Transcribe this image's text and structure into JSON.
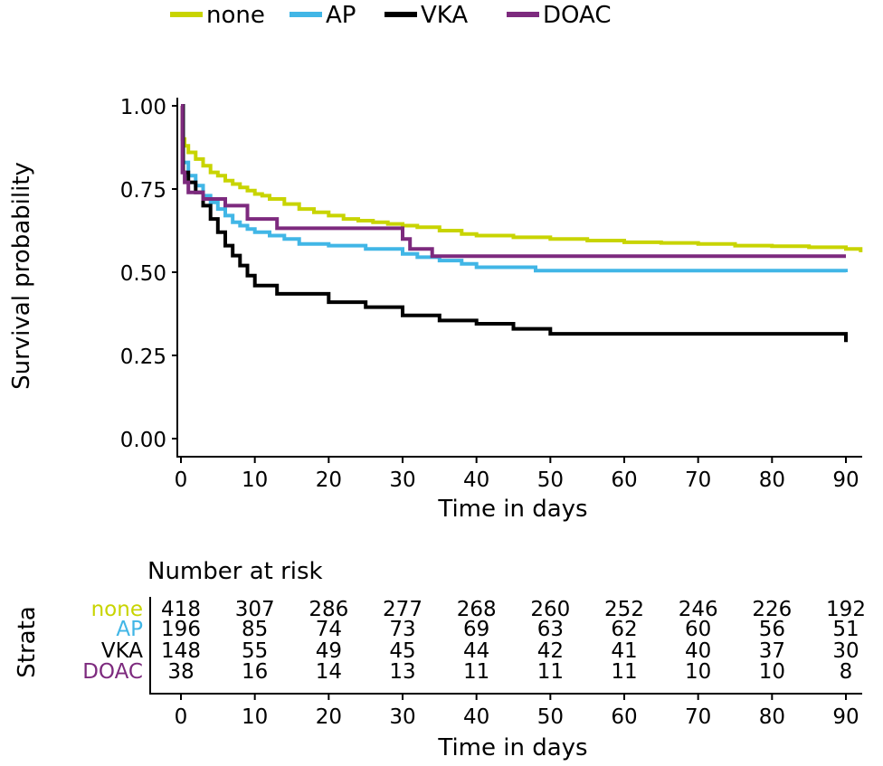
{
  "chart_data": [
    {
      "type": "line",
      "subtype": "kaplan-meier step curve",
      "title": "",
      "xlabel": "Time in days",
      "ylabel": "Survival probability",
      "xlim": [
        0,
        92
      ],
      "ylim": [
        0,
        1
      ],
      "x_ticks": [
        "0",
        "10",
        "20",
        "30",
        "40",
        "50",
        "60",
        "70",
        "80",
        "90"
      ],
      "y_ticks": [
        "0.00",
        "0.25",
        "0.50",
        "0.75",
        "1.00"
      ],
      "grid": false,
      "legend_position": "top",
      "series": [
        {
          "name": "none",
          "color": "#c8d400",
          "x": [
            0,
            0.2,
            0.5,
            1,
            2,
            3,
            4,
            5,
            6,
            7,
            8,
            9,
            10,
            11,
            12,
            14,
            16,
            18,
            20,
            22,
            24,
            26,
            28,
            30,
            32,
            35,
            38,
            40,
            45,
            50,
            55,
            60,
            65,
            70,
            75,
            80,
            85,
            90,
            92
          ],
          "y": [
            1.0,
            0.9,
            0.88,
            0.86,
            0.84,
            0.82,
            0.8,
            0.79,
            0.775,
            0.765,
            0.755,
            0.745,
            0.735,
            0.73,
            0.72,
            0.705,
            0.69,
            0.68,
            0.67,
            0.66,
            0.655,
            0.65,
            0.645,
            0.64,
            0.635,
            0.625,
            0.615,
            0.61,
            0.605,
            0.6,
            0.595,
            0.59,
            0.588,
            0.585,
            0.58,
            0.578,
            0.575,
            0.57,
            0.56
          ]
        },
        {
          "name": "AP",
          "color": "#41b6e6",
          "x": [
            0,
            0.3,
            1,
            2,
            3,
            4,
            5,
            6,
            7,
            8,
            9,
            10,
            12,
            14,
            16,
            20,
            25,
            30,
            32,
            35,
            38,
            40,
            48,
            90
          ],
          "y": [
            1.0,
            0.83,
            0.79,
            0.76,
            0.73,
            0.71,
            0.69,
            0.67,
            0.65,
            0.64,
            0.63,
            0.62,
            0.61,
            0.6,
            0.585,
            0.58,
            0.57,
            0.555,
            0.545,
            0.535,
            0.525,
            0.515,
            0.505,
            0.5
          ]
        },
        {
          "name": "VKA",
          "color": "#000000",
          "x": [
            0,
            0.3,
            1,
            2,
            3,
            4,
            5,
            6,
            7,
            8,
            9,
            10,
            13,
            20,
            25,
            30,
            35,
            40,
            45,
            50,
            90
          ],
          "y": [
            1.0,
            0.8,
            0.77,
            0.74,
            0.7,
            0.66,
            0.62,
            0.58,
            0.55,
            0.52,
            0.49,
            0.46,
            0.435,
            0.41,
            0.395,
            0.37,
            0.355,
            0.345,
            0.33,
            0.315,
            0.29
          ]
        },
        {
          "name": "DOAC",
          "color": "#7d2a7e",
          "x": [
            0,
            0.2,
            0.5,
            1,
            3,
            6,
            9,
            13,
            30,
            31,
            34,
            90
          ],
          "y": [
            1.0,
            0.8,
            0.77,
            0.74,
            0.72,
            0.7,
            0.66,
            0.632,
            0.6,
            0.57,
            0.548,
            0.548
          ]
        }
      ]
    },
    {
      "type": "table",
      "title": "Number at risk",
      "ylabel": "Strata",
      "xlabel": "Time in days",
      "x_ticks": [
        "0",
        "10",
        "20",
        "30",
        "40",
        "50",
        "60",
        "70",
        "80",
        "90"
      ],
      "rows": [
        {
          "name": "none",
          "color": "#c8d400",
          "values": [
            "418",
            "307",
            "286",
            "277",
            "268",
            "260",
            "252",
            "246",
            "226",
            "192"
          ]
        },
        {
          "name": "AP",
          "color": "#41b6e6",
          "values": [
            "196",
            "85",
            "74",
            "73",
            "69",
            "63",
            "62",
            "60",
            "56",
            "51"
          ]
        },
        {
          "name": "VKA",
          "color": "#000000",
          "values": [
            "148",
            "55",
            "49",
            "45",
            "44",
            "42",
            "41",
            "40",
            "37",
            "30"
          ]
        },
        {
          "name": "DOAC",
          "color": "#7d2a7e",
          "values": [
            "38",
            "16",
            "14",
            "13",
            "11",
            "11",
            "11",
            "10",
            "10",
            "8"
          ]
        }
      ]
    }
  ]
}
